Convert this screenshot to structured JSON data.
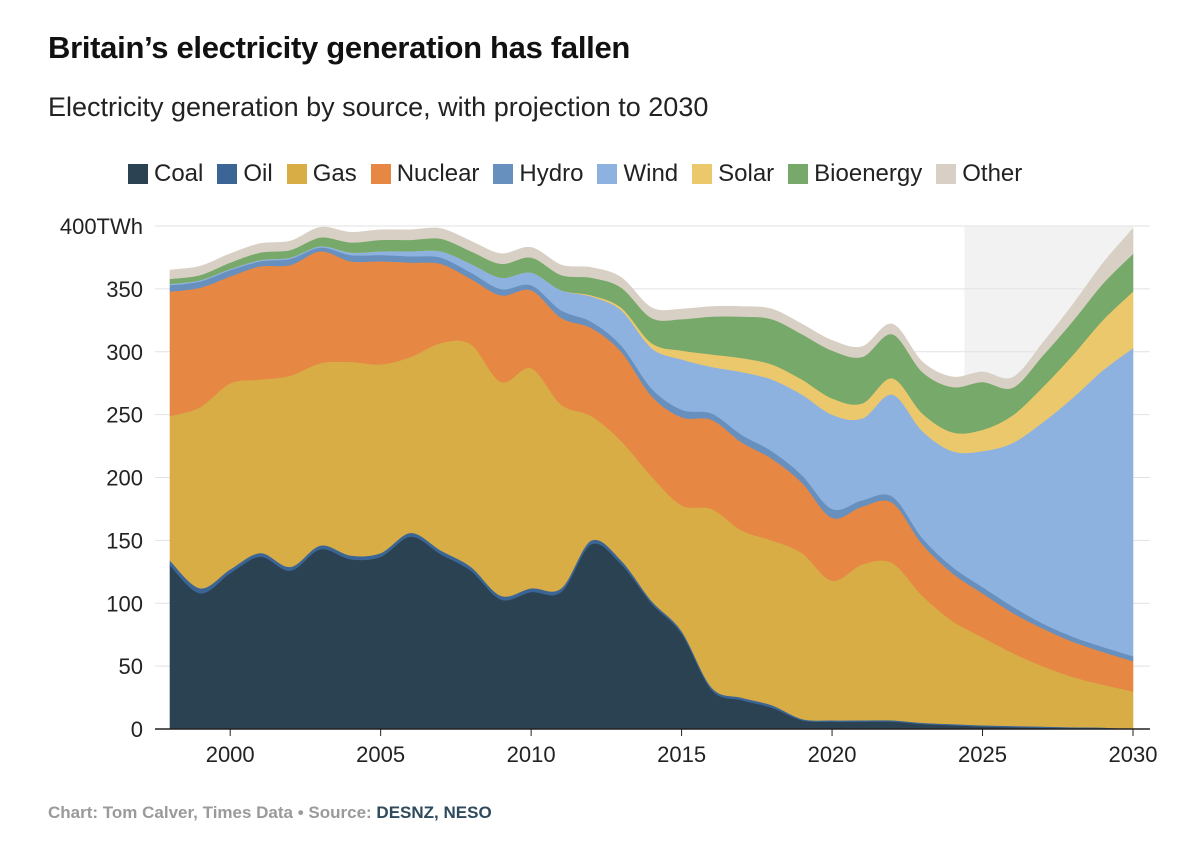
{
  "header": {
    "title": "Britain’s electricity generation has fallen",
    "subtitle": "Electricity generation by source, with projection to 2030"
  },
  "footer": {
    "credit": "Chart: Tom Calver, Times Data • Source: ",
    "sources": "DESNZ, NESO"
  },
  "colors": {
    "Coal": "#2b4252",
    "Oil": "#3b6595",
    "Gas": "#d8ad46",
    "Nuclear": "#e68744",
    "Hydro": "#6790be",
    "Wind": "#8eb2df",
    "Solar": "#ecc86c",
    "Bioenergy": "#77a96a",
    "Other": "#d8d0c4",
    "projection_shade": "#f2f2f2"
  },
  "chart_data": {
    "type": "area",
    "stacked": true,
    "title": "Britain’s electricity generation has fallen",
    "subtitle": "Electricity generation by source, with projection to 2030",
    "xlabel": "",
    "ylabel": "TWh",
    "unit": "TWh",
    "ylim": [
      0,
      400
    ],
    "xlim": [
      1998,
      2030
    ],
    "yticks": [
      0,
      50,
      100,
      150,
      200,
      250,
      300,
      350,
      400
    ],
    "ytick_labels": [
      "0",
      "50",
      "100",
      "150",
      "200",
      "250",
      "300",
      "350",
      "400TWh"
    ],
    "xticks": [
      2000,
      2005,
      2010,
      2015,
      2020,
      2025,
      2030
    ],
    "xtick_labels": [
      "2000",
      "2005",
      "2010",
      "2015",
      "2020",
      "2025",
      "2030"
    ],
    "projection_start": 2024.4,
    "grid": true,
    "legend_position": "top",
    "x": [
      1998,
      1999,
      2000,
      2001,
      2002,
      2003,
      2004,
      2005,
      2006,
      2007,
      2008,
      2009,
      2010,
      2011,
      2012,
      2013,
      2014,
      2015,
      2016,
      2017,
      2018,
      2019,
      2020,
      2021,
      2022,
      2023,
      2024,
      2025,
      2026,
      2027,
      2028,
      2029,
      2030
    ],
    "series": [
      {
        "name": "Coal",
        "values": [
          130,
          108,
          124,
          137,
          126,
          143,
          135,
          137,
          153,
          139,
          126,
          103,
          109,
          109,
          147,
          131,
          100,
          76,
          31,
          23,
          17,
          7,
          6,
          6,
          6,
          4,
          3,
          2,
          1.5,
          1,
          0.5,
          0.3,
          0
        ]
      },
      {
        "name": "Oil",
        "values": [
          4,
          4,
          3,
          3,
          3,
          3,
          3,
          3,
          3,
          3,
          3,
          3,
          3,
          3,
          3,
          3,
          2,
          2,
          2,
          2,
          2,
          1,
          1,
          1,
          1,
          1,
          1,
          1,
          1,
          1,
          1,
          1,
          0
        ]
      },
      {
        "name": "Gas",
        "values": [
          115,
          144,
          148,
          138,
          152,
          145,
          154,
          150,
          140,
          165,
          177,
          170,
          175,
          146,
          99,
          95,
          99,
          100,
          142,
          133,
          131,
          132,
          111,
          124,
          125,
          101,
          82,
          70,
          58,
          48,
          40,
          34,
          30
        ]
      },
      {
        "name": "Nuclear",
        "values": [
          99,
          95,
          85,
          90,
          88,
          89,
          80,
          82,
          75,
          63,
          52,
          69,
          62,
          69,
          70,
          71,
          64,
          70,
          71,
          70,
          65,
          56,
          50,
          46,
          48,
          41,
          38,
          35,
          32,
          30,
          28,
          26,
          24
        ]
      },
      {
        "name": "Hydro",
        "values": [
          5,
          5,
          5,
          4,
          5,
          3,
          5,
          5,
          5,
          5,
          5,
          5,
          4,
          6,
          5,
          5,
          6,
          6,
          5,
          6,
          6,
          6,
          7,
          5,
          5,
          5,
          5,
          5,
          5,
          4,
          4,
          4,
          4
        ]
      },
      {
        "name": "Wind",
        "values": [
          1,
          1,
          1,
          1,
          1,
          1,
          2,
          3,
          4,
          5,
          7,
          9,
          10,
          16,
          20,
          28,
          32,
          40,
          37,
          50,
          57,
          64,
          75,
          65,
          81,
          85,
          92,
          108,
          130,
          160,
          190,
          220,
          245
        ]
      },
      {
        "name": "Solar",
        "values": [
          0,
          0,
          0,
          0,
          0,
          0,
          0,
          0,
          0,
          0,
          0,
          0,
          0,
          0,
          1,
          2,
          4,
          7,
          10,
          11,
          12,
          12,
          13,
          12,
          13,
          14,
          15,
          17,
          22,
          28,
          34,
          40,
          45
        ]
      },
      {
        "name": "Bioenergy",
        "values": [
          4,
          4,
          5,
          6,
          6,
          7,
          8,
          9,
          9,
          10,
          10,
          11,
          12,
          12,
          14,
          16,
          20,
          25,
          30,
          33,
          36,
          36,
          38,
          37,
          35,
          33,
          36,
          38,
          22,
          25,
          27,
          29,
          30
        ]
      },
      {
        "name": "Other",
        "values": [
          7,
          7,
          7,
          7,
          7,
          8,
          8,
          8,
          8,
          8,
          8,
          8,
          8,
          8,
          8,
          8,
          8,
          8,
          8,
          8,
          8,
          8,
          8,
          8,
          8,
          8,
          8,
          8,
          8,
          10,
          13,
          16,
          20
        ]
      }
    ]
  }
}
